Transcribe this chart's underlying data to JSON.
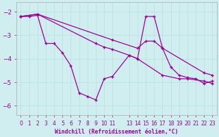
{
  "xlabel": "Windchill (Refroidissement éolien,°C)",
  "background_color": "#d0eef0",
  "line_color": "#990099",
  "xlim": [
    -0.5,
    23.5
  ],
  "ylim": [
    -6.4,
    -1.6
  ],
  "yticks": [
    -6,
    -5,
    -4,
    -3,
    -2
  ],
  "xtick_pos": [
    0,
    1,
    2,
    3,
    4,
    5,
    6,
    7,
    8,
    9,
    10,
    11,
    13,
    14,
    15,
    16,
    17,
    18,
    19,
    20,
    21,
    22,
    23
  ],
  "xtick_labels": [
    "0",
    "1",
    "2",
    "3",
    "4",
    "5",
    "6",
    "7",
    "8",
    "9",
    "10",
    "11",
    "13",
    "14",
    "15",
    "16",
    "17",
    "18",
    "19",
    "20",
    "21",
    "22",
    "23"
  ],
  "line1_x": [
    0,
    1,
    2,
    3,
    4,
    5,
    6,
    7,
    8,
    9,
    10,
    11,
    13,
    14,
    15,
    16,
    17,
    18,
    19,
    20,
    21,
    22,
    23
  ],
  "line1_y": [
    -2.2,
    -2.2,
    -2.15,
    -3.35,
    -3.35,
    -3.75,
    -4.3,
    -5.45,
    -5.6,
    -5.75,
    -4.85,
    -4.75,
    -3.85,
    -4.0,
    -2.2,
    -2.2,
    -3.55,
    -4.35,
    -4.7,
    -4.8,
    -4.85,
    -5.05,
    -4.95
  ],
  "line2_x": [
    0,
    2,
    11,
    14,
    15,
    16,
    17,
    22,
    23
  ],
  "line2_y": [
    -2.2,
    -2.1,
    -3.2,
    -3.55,
    -3.25,
    -3.25,
    -3.55,
    -4.6,
    -4.7
  ],
  "line3_x": [
    0,
    2,
    9,
    10,
    11,
    13,
    14,
    17,
    19,
    20,
    22,
    23
  ],
  "line3_y": [
    -2.2,
    -2.1,
    -3.35,
    -3.5,
    -3.6,
    -3.85,
    -4.0,
    -4.7,
    -4.85,
    -4.85,
    -4.95,
    -5.05
  ]
}
